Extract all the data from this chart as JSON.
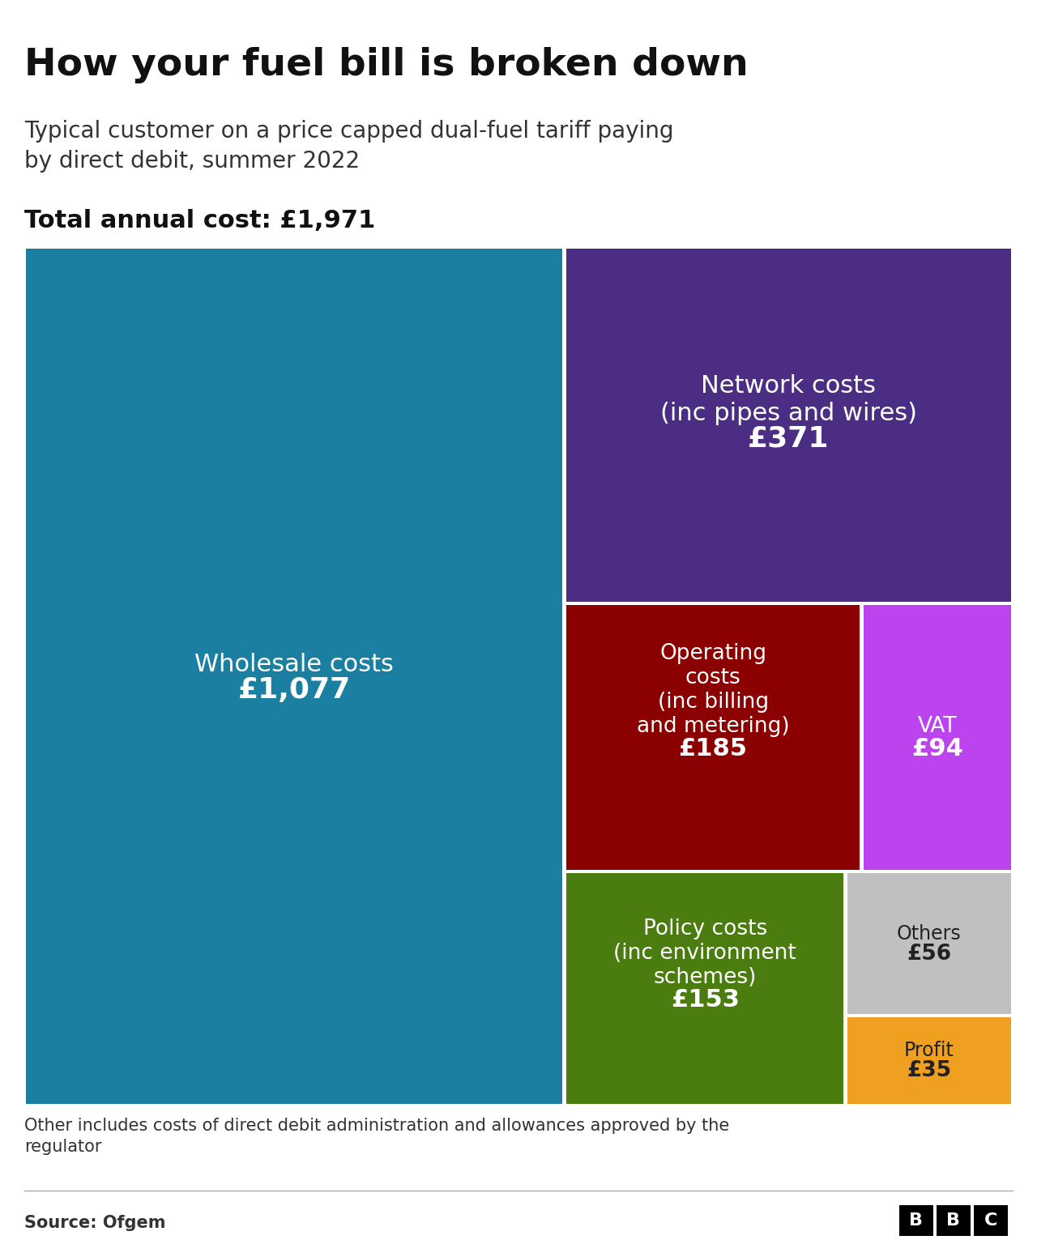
{
  "title": "How your fuel bill is broken down",
  "subtitle": "Typical customer on a price capped dual-fuel tariff paying\nby direct debit, summer 2022",
  "total_label": "Total annual cost: £1,971",
  "footnote": "Other includes costs of direct debit administration and allowances approved by the\nregulator",
  "source": "Source: Ofgem",
  "bg_color": "#ffffff",
  "total": 1971,
  "wholesale": 1077,
  "network": 371,
  "operating": 185,
  "vat": 94,
  "policy": 153,
  "others": 56,
  "profit": 35
}
